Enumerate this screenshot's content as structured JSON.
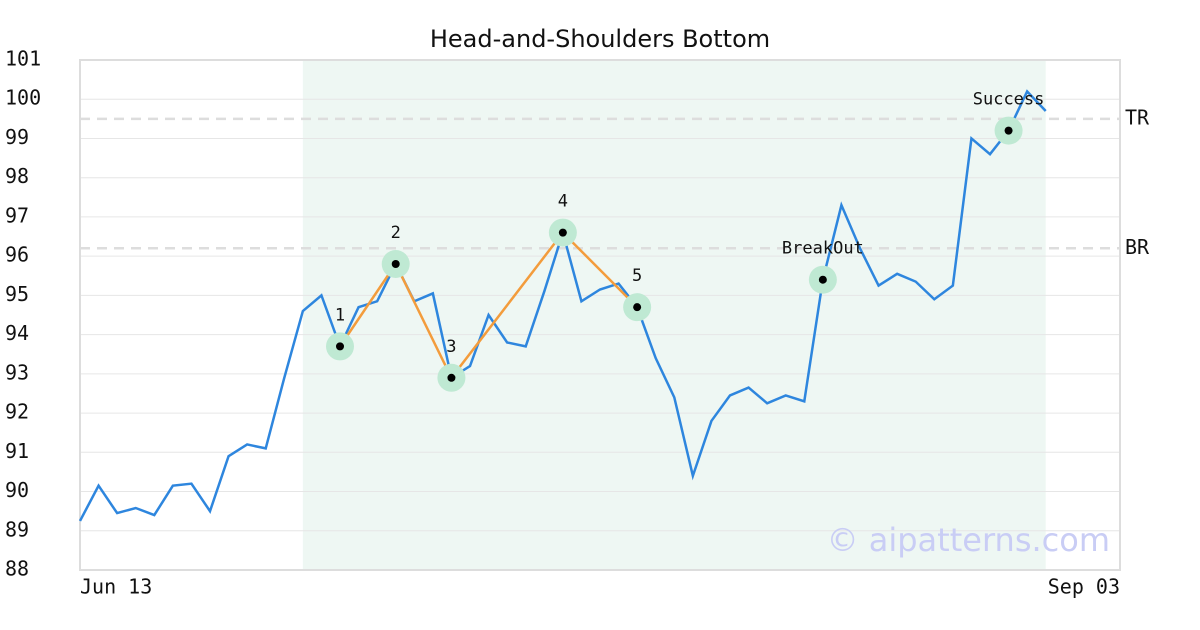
{
  "chart_data": {
    "type": "line",
    "title": "Head-and-Shoulders Bottom",
    "x": [
      0,
      1,
      2,
      3,
      4,
      5,
      6,
      7,
      8,
      9,
      10,
      11,
      12,
      13,
      14,
      15,
      16,
      17,
      18,
      19,
      20,
      21,
      22,
      23,
      24,
      25,
      26,
      27,
      28,
      29,
      30,
      31,
      32,
      33,
      34,
      35,
      36,
      37,
      38,
      39,
      40,
      41,
      42,
      43,
      44,
      45,
      46,
      47,
      48,
      49,
      50,
      51,
      52
    ],
    "xlim": [
      0,
      56
    ],
    "xticks": [
      {
        "value": 0,
        "label": "Jun 13"
      },
      {
        "value": 56,
        "label": "Sep 03"
      }
    ],
    "ylim": [
      88,
      101
    ],
    "yticks": [
      88,
      89,
      90,
      91,
      92,
      93,
      94,
      95,
      96,
      97,
      98,
      99,
      100,
      101
    ],
    "grid": true,
    "series": [
      {
        "color": "#2e86de",
        "values": [
          89.25,
          90.15,
          89.45,
          89.58,
          89.4,
          90.15,
          90.2,
          89.5,
          90.9,
          91.2,
          91.1,
          92.9,
          94.6,
          95.0,
          93.7,
          94.7,
          94.85,
          95.8,
          94.85,
          95.05,
          92.9,
          93.2,
          94.5,
          93.8,
          93.7,
          95.1,
          96.6,
          94.85,
          95.15,
          95.3,
          94.7,
          93.4,
          92.4,
          90.4,
          91.8,
          92.45,
          92.65,
          92.25,
          92.45,
          92.3,
          95.4,
          97.3,
          96.2,
          95.25,
          95.55,
          95.35,
          94.9,
          95.25,
          99.0,
          98.6,
          99.2,
          100.2,
          99.7
        ]
      }
    ],
    "shaded_region": {
      "x": [
        12,
        52
      ],
      "color": "#eef7f3"
    },
    "pattern": {
      "color": "#f39c3c",
      "points": [
        {
          "label": "1",
          "x": 14,
          "y": 93.7
        },
        {
          "label": "2",
          "x": 17,
          "y": 95.8
        },
        {
          "label": "3",
          "x": 20,
          "y": 92.9
        },
        {
          "label": "4",
          "x": 26,
          "y": 96.6
        },
        {
          "label": "5",
          "x": 30,
          "y": 94.7
        }
      ]
    },
    "signals": [
      {
        "label": "BreakOut",
        "x": 40,
        "y": 95.4
      },
      {
        "label": "Success",
        "x": 50,
        "y": 99.2
      }
    ],
    "levels": [
      {
        "label": "TR",
        "value": 99.5
      },
      {
        "label": "BR",
        "value": 96.2
      }
    ],
    "watermark": "© aipatterns.com"
  }
}
